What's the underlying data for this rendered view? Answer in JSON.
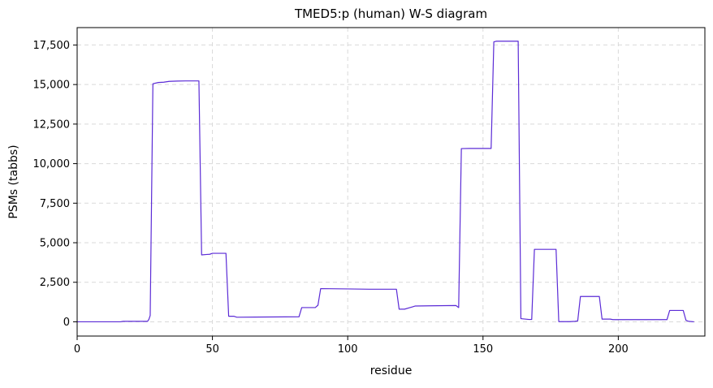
{
  "chart_data": {
    "type": "line",
    "title": "TMED5:p (human) W-S diagram",
    "xlabel": "residue",
    "ylabel": "PSMs (tabbs)",
    "xlim": [
      0,
      232
    ],
    "ylim": [
      -900,
      18600
    ],
    "xticks": [
      0,
      50,
      100,
      150,
      200
    ],
    "xtick_labels": [
      "0",
      "50",
      "100",
      "150",
      "200"
    ],
    "yticks": [
      0,
      2500,
      5000,
      7500,
      10000,
      12500,
      15000,
      17500
    ],
    "ytick_labels": [
      "0",
      "2,500",
      "5,000",
      "7,500",
      "10,000",
      "12,500",
      "15,000",
      "17,500"
    ],
    "grid": true,
    "line_color": "#5b2bd6",
    "series": [
      {
        "points": [
          [
            0,
            0
          ],
          [
            16,
            0
          ],
          [
            17,
            30
          ],
          [
            26,
            30
          ],
          [
            26.5,
            150
          ],
          [
            27,
            400
          ],
          [
            28,
            15050
          ],
          [
            30,
            15130
          ],
          [
            32,
            15150
          ],
          [
            34,
            15200
          ],
          [
            37,
            15220
          ],
          [
            40,
            15230
          ],
          [
            45,
            15230
          ],
          [
            46,
            4230
          ],
          [
            48,
            4260
          ],
          [
            49,
            4270
          ],
          [
            50,
            4330
          ],
          [
            55,
            4330
          ],
          [
            56,
            350
          ],
          [
            58,
            350
          ],
          [
            59,
            290
          ],
          [
            66,
            300
          ],
          [
            82,
            320
          ],
          [
            83,
            900
          ],
          [
            88,
            900
          ],
          [
            89,
            1050
          ],
          [
            90,
            2100
          ],
          [
            100,
            2080
          ],
          [
            108,
            2060
          ],
          [
            118,
            2060
          ],
          [
            119,
            800
          ],
          [
            121,
            800
          ],
          [
            123,
            900
          ],
          [
            125,
            1000
          ],
          [
            130,
            1010
          ],
          [
            140,
            1030
          ],
          [
            141,
            900
          ],
          [
            142,
            10950
          ],
          [
            145,
            10960
          ],
          [
            153,
            10960
          ],
          [
            154,
            17700
          ],
          [
            155,
            17740
          ],
          [
            163,
            17740
          ],
          [
            164,
            200
          ],
          [
            167,
            150
          ],
          [
            168,
            150
          ],
          [
            169,
            4580
          ],
          [
            177,
            4580
          ],
          [
            178,
            10
          ],
          [
            182,
            10
          ],
          [
            184,
            30
          ],
          [
            185,
            60
          ],
          [
            186,
            1600
          ],
          [
            193,
            1600
          ],
          [
            194,
            170
          ],
          [
            197,
            170
          ],
          [
            198,
            140
          ],
          [
            218,
            140
          ],
          [
            219,
            720
          ],
          [
            224,
            720
          ],
          [
            225,
            100
          ],
          [
            226,
            30
          ],
          [
            228,
            0
          ]
        ]
      }
    ]
  }
}
